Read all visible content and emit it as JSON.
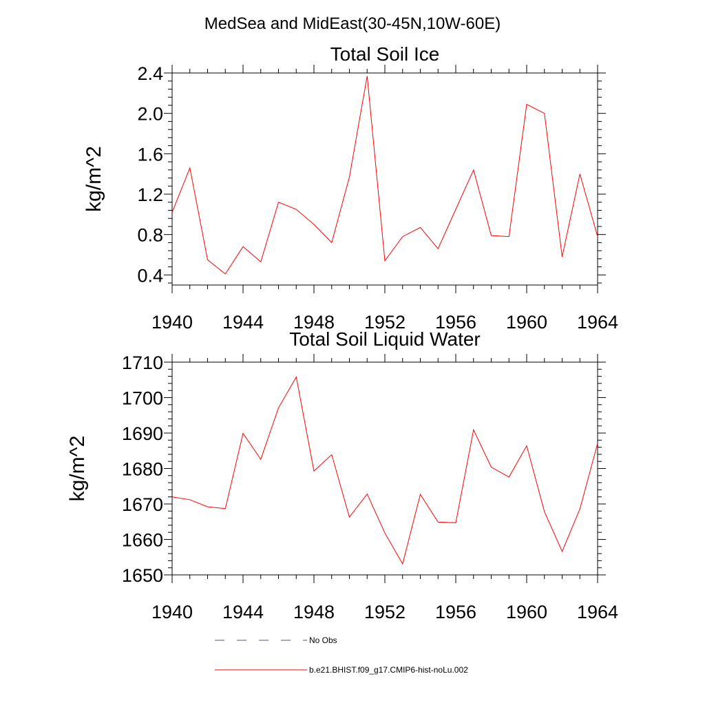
{
  "figure": {
    "title": "MedSea and MidEast(30-45N,10W-60E)"
  },
  "chart_data": [
    {
      "type": "line",
      "title": "Total Soil Ice",
      "ylabel": "kg/m^2",
      "xlabel": "",
      "xlim": [
        1940,
        1964
      ],
      "ylim": [
        0.3,
        2.4
      ],
      "xticks": [
        1940,
        1944,
        1948,
        1952,
        1956,
        1960,
        1964
      ],
      "yticks": [
        0.4,
        0.8,
        1.2,
        1.6,
        2.0,
        2.4
      ],
      "ytick_labels": [
        "0.4",
        "0.8",
        "1.2",
        "1.6",
        "2.0",
        "2.4"
      ],
      "x": [
        1940,
        1941,
        1942,
        1943,
        1944,
        1945,
        1946,
        1947,
        1948,
        1949,
        1950,
        1951,
        1952,
        1953,
        1954,
        1955,
        1956,
        1957,
        1958,
        1959,
        1960,
        1961,
        1962,
        1963,
        1964
      ],
      "series": [
        {
          "name": "b.e21.BHIST.f09_g17.CMIP6-hist-noLu.002",
          "color": "#ff0000",
          "values": [
            1.02,
            1.46,
            0.55,
            0.41,
            0.68,
            0.53,
            1.12,
            1.05,
            0.9,
            0.72,
            1.37,
            2.37,
            0.54,
            0.78,
            0.87,
            0.66,
            1.05,
            1.44,
            0.79,
            0.78,
            2.09,
            2.0,
            0.58,
            1.4,
            0.78
          ]
        }
      ]
    },
    {
      "type": "line",
      "title": "Total Soil Liquid Water",
      "ylabel": "kg/m^2",
      "xlabel": "",
      "xlim": [
        1940,
        1964
      ],
      "ylim": [
        1650,
        1710
      ],
      "xticks": [
        1940,
        1944,
        1948,
        1952,
        1956,
        1960,
        1964
      ],
      "yticks": [
        1650,
        1660,
        1670,
        1680,
        1690,
        1700,
        1710
      ],
      "ytick_labels": [
        "1650",
        "1660",
        "1670",
        "1680",
        "1690",
        "1700",
        "1710"
      ],
      "x": [
        1940,
        1941,
        1942,
        1943,
        1944,
        1945,
        1946,
        1947,
        1948,
        1949,
        1950,
        1951,
        1952,
        1953,
        1954,
        1955,
        1956,
        1957,
        1958,
        1959,
        1960,
        1961,
        1962,
        1963,
        1964
      ],
      "series": [
        {
          "name": "b.e21.BHIST.f09_g17.CMIP6-hist-noLu.002",
          "color": "#ff0000",
          "values": [
            1672.0,
            1671.2,
            1669.2,
            1668.7,
            1689.9,
            1682.6,
            1697.1,
            1705.8,
            1679.3,
            1683.9,
            1666.3,
            1672.8,
            1661.8,
            1653.1,
            1672.7,
            1664.9,
            1664.7,
            1690.9,
            1680.4,
            1677.6,
            1686.4,
            1667.8,
            1656.6,
            1668.6,
            1687.1
          ]
        }
      ]
    }
  ],
  "legend": {
    "items": [
      {
        "label": "No Obs",
        "style": "dashed",
        "color": "#4a5580"
      },
      {
        "label": "b.e21.BHIST.f09_g17.CMIP6-hist-noLu.002",
        "style": "solid",
        "color": "#ff0000"
      }
    ]
  }
}
